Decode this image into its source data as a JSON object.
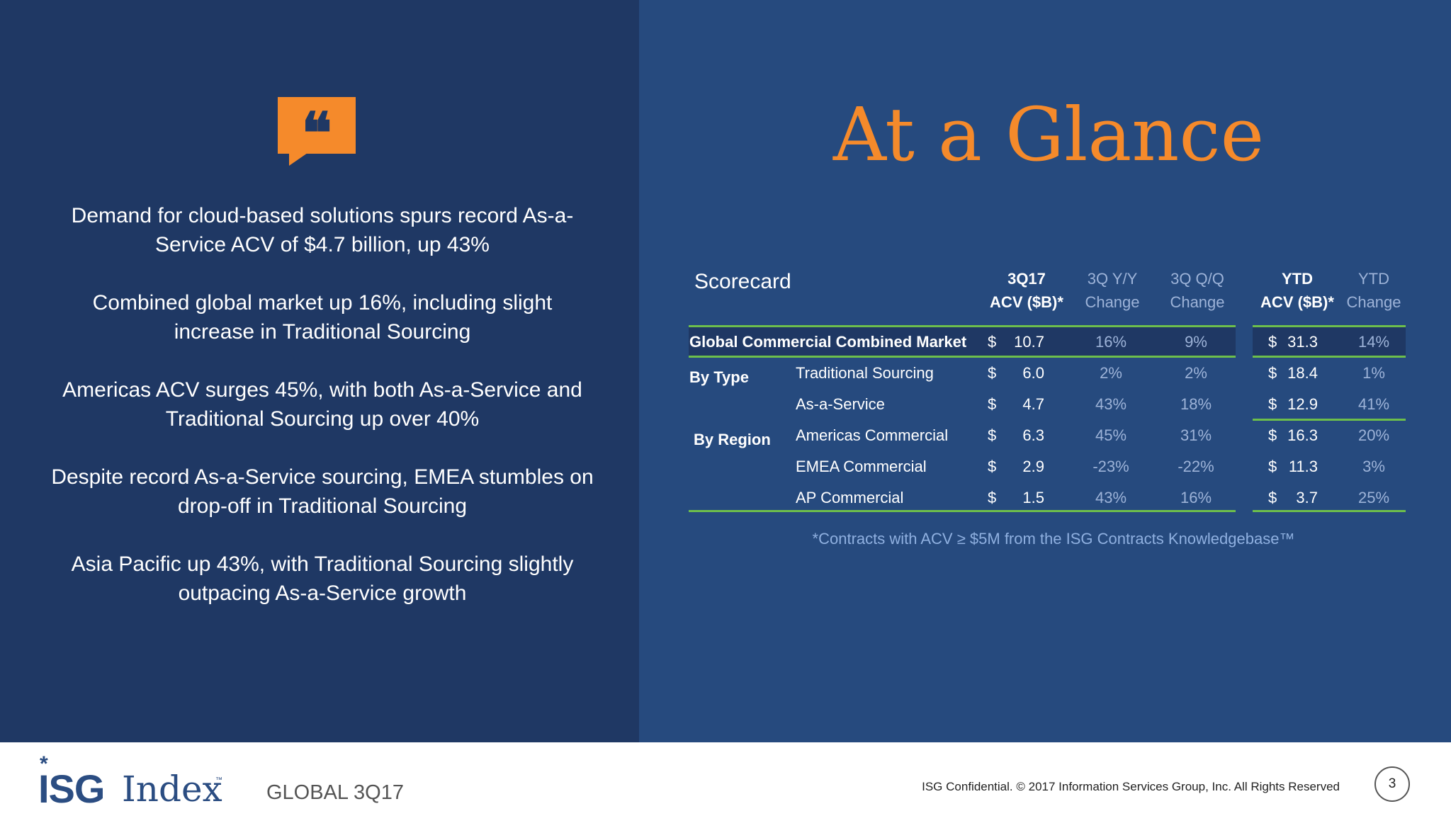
{
  "left": {
    "quote_icon": "quote-bubble-icon",
    "quote_glyph": "❝",
    "bullets": [
      "Demand for cloud-based solutions spurs record As-a-Service ACV of $4.7 billion, up 43%",
      "Combined global market up 16%, including slight increase in Traditional Sourcing",
      "Americas ACV surges 45%, with both As-a-Service and Traditional Sourcing up over 40%",
      "Despite record As-a-Service sourcing, EMEA stumbles on drop-off in Traditional Sourcing",
      "Asia Pacific up 43%, with Traditional Sourcing slightly outpacing As-a-Service growth"
    ]
  },
  "right": {
    "title": "At a Glance",
    "scorecard_label": "Scorecard",
    "headers": {
      "acv": [
        "3Q17",
        "ACV ($B)*"
      ],
      "yy": [
        "3Q Y/Y",
        "Change"
      ],
      "qq": [
        "3Q Q/Q",
        "Change"
      ],
      "ytd": [
        "YTD",
        "ACV ($B)*"
      ],
      "ytd_change": [
        "YTD",
        "Change"
      ]
    },
    "combined": {
      "label": "Global Commercial Combined Market",
      "cur": "$",
      "acv": "10.7",
      "yy": "16%",
      "qq": "9%",
      "ytd_cur": "$",
      "ytd": "31.3",
      "ytd_change": "14%"
    },
    "groups": [
      {
        "label": "By Type",
        "rows": [
          {
            "label": "Traditional Sourcing",
            "cur": "$",
            "acv": "6.0",
            "yy": "2%",
            "qq": "2%",
            "ytd_cur": "$",
            "ytd": "18.4",
            "ytd_change": "1%"
          },
          {
            "label": "As-a-Service",
            "cur": "$",
            "acv": "4.7",
            "yy": "43%",
            "qq": "18%",
            "ytd_cur": "$",
            "ytd": "12.9",
            "ytd_change": "41%"
          }
        ]
      },
      {
        "label": "By Region",
        "rows": [
          {
            "label": "Americas Commercial",
            "cur": "$",
            "acv": "6.3",
            "yy": "45%",
            "qq": "31%",
            "ytd_cur": "$",
            "ytd": "16.3",
            "ytd_change": "20%"
          },
          {
            "label": "EMEA Commercial",
            "cur": "$",
            "acv": "2.9",
            "yy": "-23%",
            "qq": "-22%",
            "ytd_cur": "$",
            "ytd": "11.3",
            "ytd_change": "3%"
          },
          {
            "label": "AP Commercial",
            "cur": "$",
            "acv": "1.5",
            "yy": "43%",
            "qq": "16%",
            "ytd_cur": "$",
            "ytd": "3.7",
            "ytd_change": "25%"
          }
        ]
      }
    ],
    "footnote": "*Contracts with ACV ≥ $5M from the ISG Contracts Knowledgebase™"
  },
  "footer": {
    "logo_star": "*",
    "logo_isg": "ISG",
    "logo_index": "Index",
    "logo_tm": "™",
    "edition": "GLOBAL 3Q17",
    "copyright": "ISG Confidential. © 2017 Information Services Group, Inc.  All Rights Reserved",
    "page_number": "3"
  },
  "colors": {
    "left_bg": "#1f3864",
    "right_bg": "#264a7e",
    "accent_orange": "#f58a2b",
    "rule_green": "#6dbf4b"
  }
}
